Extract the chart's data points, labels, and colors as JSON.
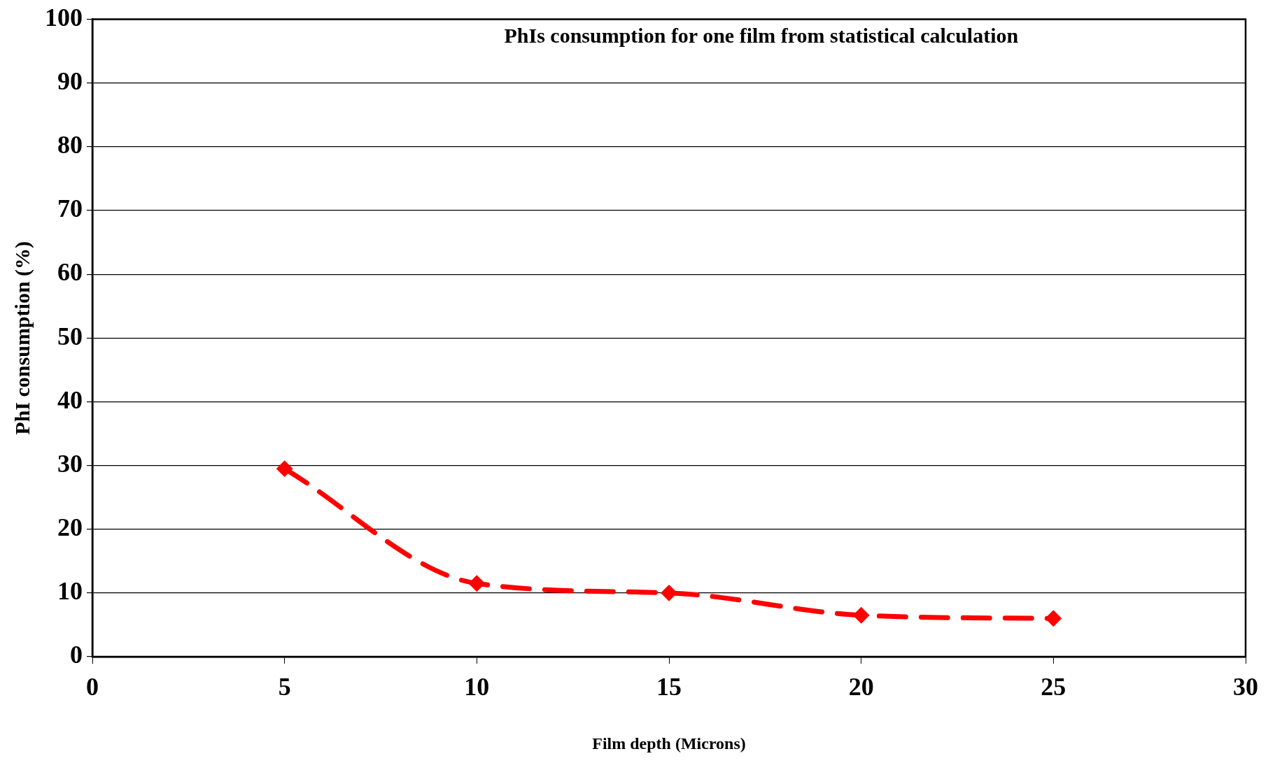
{
  "chart_data": {
    "type": "line",
    "title": "PhIs consumption for one film from statistical calculation",
    "xlabel": "Film depth (Microns)",
    "ylabel": "PhI consumption (%)",
    "x": [
      5,
      10,
      15,
      20,
      25
    ],
    "series": [
      {
        "color": "#ff0000",
        "values": [
          29.5,
          11.5,
          10,
          6.5,
          6
        ]
      }
    ],
    "xlim": [
      0,
      30
    ],
    "xticks": [
      0,
      5,
      10,
      15,
      20,
      25,
      30
    ],
    "ylim": [
      0,
      100
    ],
    "yticks": [
      0,
      10,
      20,
      30,
      40,
      50,
      60,
      70,
      80,
      90,
      100
    ],
    "grid": "y",
    "legend": false,
    "marker": "diamond",
    "line_style": "dashed"
  }
}
